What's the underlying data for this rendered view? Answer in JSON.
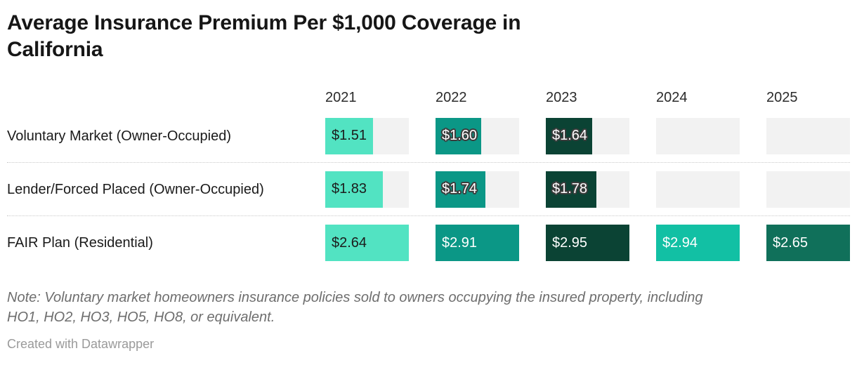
{
  "header": {
    "title": "Average Insurance Premium Per $1,000 Coverage in California",
    "title_line1": "Average Insurance Premium Per $1,000 Coverage in",
    "title_line2": "California"
  },
  "colors": {
    "bar_track": "#f2f2f2",
    "title_text": "#161616",
    "row_label_text": "#1a1a1a",
    "note_text": "#6e6e6e",
    "attribution_text": "#9a9a9a",
    "separator": "#c9c9c9",
    "halo_outline": "#3c3c3c"
  },
  "chart_data": {
    "type": "bar",
    "title": "Average Insurance Premium Per $1,000 Coverage in California",
    "categories": [
      "2021",
      "2022",
      "2023",
      "2024",
      "2025"
    ],
    "column_colors": [
      "#52e3c2",
      "#0b9786",
      "#0b4334",
      "#12c0a4",
      "#10705a"
    ],
    "column_label_styles": [
      "dark",
      "light",
      "light",
      "light",
      "light"
    ],
    "scaling": "per-column-max",
    "grid": "off",
    "rows": [
      {
        "label": "Voluntary Market (Owner-Occupied)",
        "values": [
          1.51,
          1.6,
          1.64,
          null,
          null
        ],
        "display": [
          "$1.51",
          "$1.60",
          "$1.64",
          "",
          ""
        ]
      },
      {
        "label": "Lender/Forced Placed (Owner-Occupied)",
        "values": [
          1.83,
          1.74,
          1.78,
          null,
          null
        ],
        "display": [
          "$1.83",
          "$1.74",
          "$1.78",
          "",
          ""
        ]
      },
      {
        "label": "FAIR Plan (Residential)",
        "values": [
          2.64,
          2.91,
          2.95,
          2.94,
          2.65
        ],
        "display": [
          "$2.64",
          "$2.91",
          "$2.95",
          "$2.94",
          "$2.65"
        ]
      }
    ]
  },
  "footer": {
    "note": "Note: Voluntary market homeowners insurance policies sold to owners occupying the insured property, including HO1, HO2, HO3, HO5, HO8, or equivalent.",
    "note_line1": "Note: Voluntary market homeowners insurance policies sold to owners occupying the insured property, including",
    "note_line2": "HO1, HO2, HO3, HO5, HO8, or equivalent.",
    "attribution": "Created with Datawrapper"
  }
}
